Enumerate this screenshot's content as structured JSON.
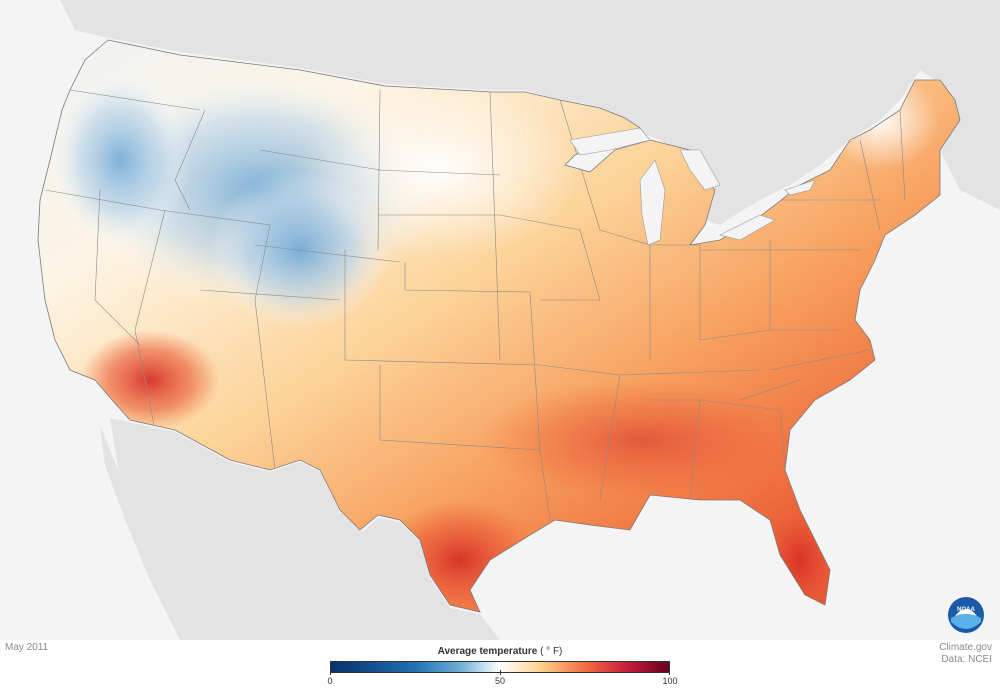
{
  "map": {
    "footer_left": "May 2011",
    "credit_line_1": "Climate.gov",
    "credit_line_2": "Data: NCEI",
    "logo_text": "NOAA",
    "legend": {
      "title": "Average temperature",
      "unit": "( ° F)",
      "min_label": "0",
      "mid_label": "50",
      "max_label": "100",
      "min_value": 0,
      "mid_value": 50,
      "max_value": 100,
      "color_stops": [
        {
          "value": 0,
          "color": "#08306b"
        },
        {
          "value": 25,
          "color": "#2171b5"
        },
        {
          "value": 38,
          "color": "#6baed6"
        },
        {
          "value": 50,
          "color": "#ffffff"
        },
        {
          "value": 62,
          "color": "#fdd38a"
        },
        {
          "value": 75,
          "color": "#f46d43"
        },
        {
          "value": 88,
          "color": "#c51b3a"
        },
        {
          "value": 100,
          "color": "#67001f"
        }
      ]
    },
    "colors": {
      "land_background": "#e3e3e3",
      "ocean_background": "#f4f4f4",
      "boundary": "#7a7a7a",
      "cold": "#4f94cc",
      "cool": "#d9e8f4",
      "neutral": "#ffffff",
      "mild": "#fde2a8",
      "warm": "#f9b77a",
      "hot": "#ef6a3a",
      "very_hot": "#d93428"
    }
  }
}
